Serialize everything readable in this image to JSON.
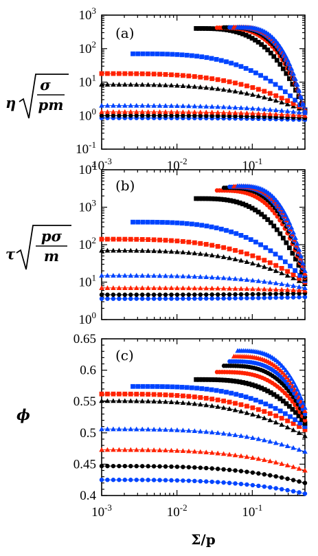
{
  "colors": {
    "black": "#000000",
    "red": "#ff2200",
    "blue": "#0044ff"
  },
  "xlabel": "Σ/p",
  "chart_data": [
    {
      "type": "scatter",
      "panel_label": "(a)",
      "ylabel": "η√(σ/pm)",
      "x_scale": "log",
      "y_scale": "log",
      "xlim": [
        0.001,
        0.5
      ],
      "ylim": [
        0.1,
        1000
      ],
      "x_ticks": [
        {
          "value": 0.001,
          "base": "10",
          "exp": "-3"
        },
        {
          "value": 0.01,
          "base": "10",
          "exp": "-2"
        },
        {
          "value": 0.1,
          "base": "10",
          "exp": "-1"
        }
      ],
      "y_ticks": [
        {
          "value": 0.1,
          "base": "10",
          "exp": "-1"
        },
        {
          "value": 1,
          "base": "10",
          "exp": "0"
        },
        {
          "value": 10,
          "base": "10",
          "exp": "1"
        },
        {
          "value": 100,
          "base": "10",
          "exp": "2"
        },
        {
          "value": 1000,
          "base": "10",
          "exp": "3"
        }
      ],
      "series": [
        {
          "color": "blue",
          "marker": "circle",
          "x0": 0.001,
          "y0": 0.85,
          "y_end": 0.75
        },
        {
          "color": "black",
          "marker": "circle",
          "x0": 0.001,
          "y0": 1.0,
          "y_end": 0.85
        },
        {
          "color": "red",
          "marker": "triangle",
          "x0": 0.001,
          "y0": 1.3,
          "y_end": 1.0
        },
        {
          "color": "blue",
          "marker": "triangle",
          "x0": 0.001,
          "y0": 2.0,
          "y_end": 1.2
        },
        {
          "color": "black",
          "marker": "triangle",
          "x0": 0.001,
          "y0": 8.5,
          "y_end": 1.4
        },
        {
          "color": "red",
          "marker": "square",
          "x0": 0.001,
          "y0": 18,
          "y_end": 1.5
        },
        {
          "color": "blue",
          "marker": "square",
          "x0": 0.0026,
          "y0": 70,
          "y_end": 1.5
        },
        {
          "color": "black",
          "marker": "square",
          "x0": 0.018,
          "y0": 400,
          "y_end": 1.4
        },
        {
          "color": "red",
          "marker": "circle",
          "x0": 0.034,
          "y0": 420,
          "y_end": 1.4
        },
        {
          "color": "black",
          "marker": "circle",
          "x0": 0.042,
          "y0": 430,
          "y_end": 1.3
        },
        {
          "color": "blue",
          "marker": "circle",
          "x0": 0.05,
          "y0": 430,
          "y_end": 1.3
        },
        {
          "color": "red",
          "marker": "triangle",
          "x0": 0.057,
          "y0": 440,
          "y_end": 1.3
        },
        {
          "color": "blue",
          "marker": "triangle",
          "x0": 0.064,
          "y0": 440,
          "y_end": 1.3
        }
      ]
    },
    {
      "type": "scatter",
      "panel_label": "(b)",
      "ylabel": "τ√(pσ/m)",
      "x_scale": "log",
      "y_scale": "log",
      "xlim": [
        0.001,
        0.5
      ],
      "ylim": [
        1,
        10000
      ],
      "x_ticks": [],
      "y_ticks": [
        {
          "value": 1,
          "base": "10",
          "exp": "0"
        },
        {
          "value": 10,
          "base": "10",
          "exp": "1"
        },
        {
          "value": 100,
          "base": "10",
          "exp": "2"
        },
        {
          "value": 1000,
          "base": "10",
          "exp": "3"
        },
        {
          "value": 10000,
          "base": "10",
          "exp": "4"
        }
      ],
      "series": [
        {
          "color": "blue",
          "marker": "circle",
          "x0": 0.001,
          "y0": 3.6,
          "y_end": 4.0
        },
        {
          "color": "black",
          "marker": "circle",
          "x0": 0.001,
          "y0": 4.6,
          "y_end": 5.0
        },
        {
          "color": "red",
          "marker": "triangle",
          "x0": 0.001,
          "y0": 7,
          "y_end": 6.0
        },
        {
          "color": "blue",
          "marker": "triangle",
          "x0": 0.001,
          "y0": 15,
          "y_end": 7.0
        },
        {
          "color": "black",
          "marker": "triangle",
          "x0": 0.001,
          "y0": 70,
          "y_end": 9
        },
        {
          "color": "red",
          "marker": "square",
          "x0": 0.001,
          "y0": 140,
          "y_end": 10
        },
        {
          "color": "blue",
          "marker": "square",
          "x0": 0.0026,
          "y0": 400,
          "y_end": 11
        },
        {
          "color": "black",
          "marker": "square",
          "x0": 0.018,
          "y0": 1700,
          "y_end": 12
        },
        {
          "color": "red",
          "marker": "circle",
          "x0": 0.034,
          "y0": 2800,
          "y_end": 13
        },
        {
          "color": "black",
          "marker": "circle",
          "x0": 0.042,
          "y0": 3300,
          "y_end": 14
        },
        {
          "color": "blue",
          "marker": "circle",
          "x0": 0.05,
          "y0": 3500,
          "y_end": 15
        },
        {
          "color": "red",
          "marker": "triangle",
          "x0": 0.057,
          "y0": 3600,
          "y_end": 17
        },
        {
          "color": "blue",
          "marker": "triangle",
          "x0": 0.064,
          "y0": 3700,
          "y_end": 20
        }
      ]
    },
    {
      "type": "scatter",
      "panel_label": "(c)",
      "ylabel": "ϕ",
      "x_scale": "log",
      "y_scale": "linear",
      "xlim": [
        0.001,
        0.5
      ],
      "ylim": [
        0.4,
        0.65
      ],
      "x_ticks": [
        {
          "value": 0.001,
          "base": "10",
          "exp": "-3"
        },
        {
          "value": 0.01,
          "base": "10",
          "exp": "-2"
        },
        {
          "value": 0.1,
          "base": "10",
          "exp": "-1"
        }
      ],
      "y_ticks": [
        {
          "value": 0.4,
          "label": "0.4"
        },
        {
          "value": 0.45,
          "label": "0.45"
        },
        {
          "value": 0.5,
          "label": "0.5"
        },
        {
          "value": 0.55,
          "label": "0.55"
        },
        {
          "value": 0.6,
          "label": "0.6"
        },
        {
          "value": 0.65,
          "label": "0.65"
        }
      ],
      "series": [
        {
          "color": "blue",
          "marker": "circle",
          "x0": 0.001,
          "y0": 0.425,
          "y_end": 0.403
        },
        {
          "color": "black",
          "marker": "circle",
          "x0": 0.001,
          "y0": 0.447,
          "y_end": 0.42
        },
        {
          "color": "red",
          "marker": "triangle",
          "x0": 0.001,
          "y0": 0.473,
          "y_end": 0.44
        },
        {
          "color": "blue",
          "marker": "triangle",
          "x0": 0.001,
          "y0": 0.506,
          "y_end": 0.47
        },
        {
          "color": "black",
          "marker": "triangle",
          "x0": 0.001,
          "y0": 0.551,
          "y_end": 0.495
        },
        {
          "color": "red",
          "marker": "square",
          "x0": 0.001,
          "y0": 0.562,
          "y_end": 0.505
        },
        {
          "color": "blue",
          "marker": "square",
          "x0": 0.0026,
          "y0": 0.574,
          "y_end": 0.51
        },
        {
          "color": "black",
          "marker": "square",
          "x0": 0.018,
          "y0": 0.585,
          "y_end": 0.515
        },
        {
          "color": "red",
          "marker": "circle",
          "x0": 0.034,
          "y0": 0.597,
          "y_end": 0.52
        },
        {
          "color": "black",
          "marker": "circle",
          "x0": 0.042,
          "y0": 0.607,
          "y_end": 0.525
        },
        {
          "color": "blue",
          "marker": "circle",
          "x0": 0.05,
          "y0": 0.614,
          "y_end": 0.53
        },
        {
          "color": "red",
          "marker": "triangle",
          "x0": 0.057,
          "y0": 0.622,
          "y_end": 0.535
        },
        {
          "color": "blue",
          "marker": "triangle",
          "x0": 0.064,
          "y0": 0.631,
          "y_end": 0.54
        }
      ]
    }
  ]
}
